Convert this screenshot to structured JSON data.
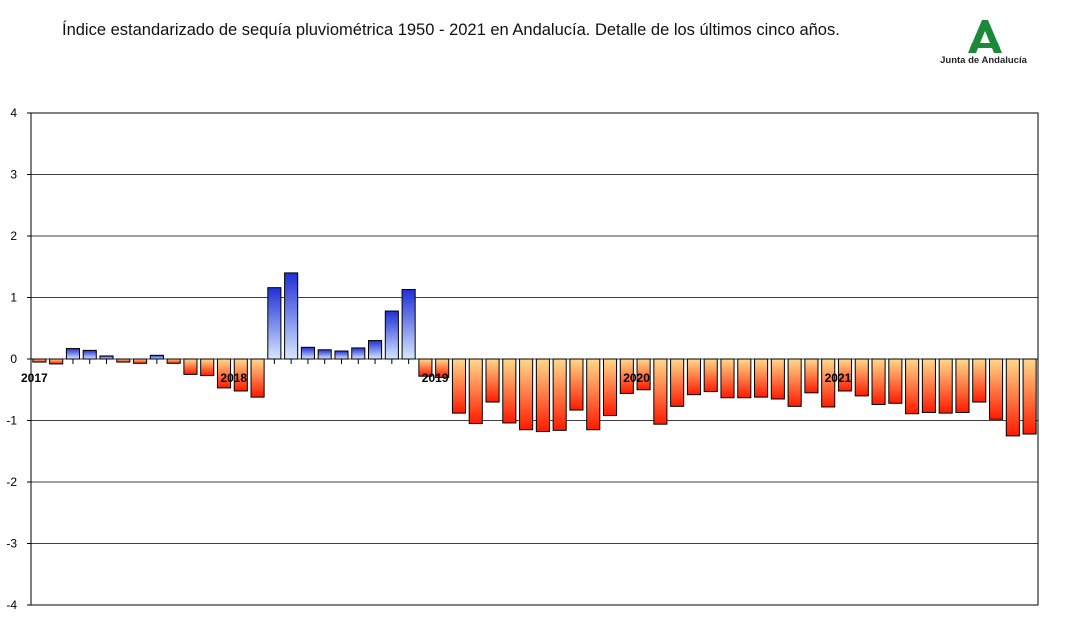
{
  "header": {
    "title": "Índice estandarizado de sequía pluviométrica 1950 - 2021 en Andalucía. Detalle de los últimos cinco años.",
    "logo_text": "Junta de Andalucía"
  },
  "colors": {
    "positive_top": "#1f2fd6",
    "positive_bottom": "#d6e8ff",
    "negative_top": "#ffd98a",
    "negative_bottom": "#ff1a00",
    "logo_green": "#1a8a3a"
  },
  "chart_data": {
    "type": "bar",
    "title": "Índice estandarizado de sequía pluviométrica 1950 - 2021 en Andalucía. Detalle de los últimos cinco años.",
    "xlabel": "",
    "ylabel": "",
    "ylim": [
      -4,
      4
    ],
    "yticks": [
      4,
      3,
      2,
      1,
      0,
      -1,
      -2,
      -3,
      -4
    ],
    "year_labels": [
      {
        "label": "2017",
        "index": 0
      },
      {
        "label": "2018",
        "index": 12
      },
      {
        "label": "2019",
        "index": 24
      },
      {
        "label": "2020",
        "index": 36
      },
      {
        "label": "2021",
        "index": 48
      }
    ],
    "grid": "horizontal",
    "legend": "none",
    "values": [
      -0.05,
      -0.08,
      0.17,
      0.14,
      0.05,
      -0.05,
      -0.07,
      0.06,
      -0.07,
      -0.25,
      -0.27,
      -0.47,
      -0.52,
      -0.62,
      1.16,
      1.4,
      0.19,
      0.15,
      0.13,
      0.18,
      0.3,
      0.78,
      1.13,
      -0.28,
      -0.3,
      -0.88,
      -1.05,
      -0.7,
      -1.04,
      -1.15,
      -1.18,
      -1.16,
      -0.83,
      -1.15,
      -0.92,
      -0.56,
      -0.5,
      -1.06,
      -0.77,
      -0.58,
      -0.53,
      -0.63,
      -0.63,
      -0.62,
      -0.65,
      -0.77,
      -0.55,
      -0.78,
      -0.52,
      -0.6,
      -0.74,
      -0.72,
      -0.89,
      -0.87,
      -0.88,
      -0.87,
      -0.7,
      -0.98,
      -1.25,
      -1.22
    ]
  }
}
